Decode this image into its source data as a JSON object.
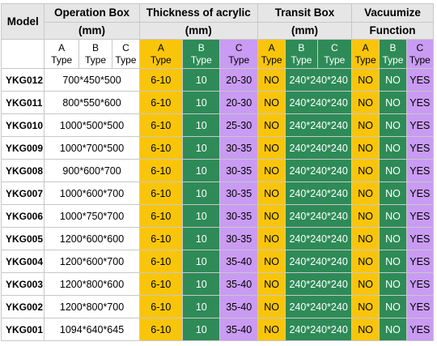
{
  "header": {
    "model": "Model",
    "operation_box": "Operation Box",
    "thickness": "Thickness of acrylic",
    "transit_box": "Transit Box",
    "vacuumize": "Vacuumize",
    "mm": "(mm)",
    "function": "Function",
    "sub": {
      "a": "A",
      "b": "B",
      "c": "C",
      "type": "Type"
    }
  },
  "rows": [
    {
      "model": "YKG012",
      "op_box": "700*450*500",
      "a": "6-10",
      "b": "10",
      "c": "20-30",
      "transit_a": "NO",
      "transit_bc": "240*240*240",
      "vac_a": "NO",
      "vac_b": "NO",
      "vac_c": "YES"
    },
    {
      "model": "YKG011",
      "op_box": "800*550*600",
      "a": "6-10",
      "b": "10",
      "c": "20-30",
      "transit_a": "NO",
      "transit_bc": "240*240*240",
      "vac_a": "NO",
      "vac_b": "NO",
      "vac_c": "YES"
    },
    {
      "model": "YKG010",
      "op_box": "1000*500*500",
      "a": "6-10",
      "b": "10",
      "c": "25-30",
      "transit_a": "NO",
      "transit_bc": "240*240*240",
      "vac_a": "NO",
      "vac_b": "NO",
      "vac_c": "YES"
    },
    {
      "model": "YKG009",
      "op_box": "1000*700*500",
      "a": "6-10",
      "b": "10",
      "c": "30-35",
      "transit_a": "NO",
      "transit_bc": "240*240*240",
      "vac_a": "NO",
      "vac_b": "NO",
      "vac_c": "YES"
    },
    {
      "model": "YKG008",
      "op_box": "900*600*700",
      "a": "6-10",
      "b": "10",
      "c": "30-35",
      "transit_a": "NO",
      "transit_bc": "240*240*240",
      "vac_a": "NO",
      "vac_b": "NO",
      "vac_c": "YES"
    },
    {
      "model": "YKG007",
      "op_box": "1000*600*700",
      "a": "6-10",
      "b": "10",
      "c": "30-35",
      "transit_a": "NO",
      "transit_bc": "240*240*240",
      "vac_a": "NO",
      "vac_b": "NO",
      "vac_c": "YES"
    },
    {
      "model": "YKG006",
      "op_box": "1000*750*700",
      "a": "6-10",
      "b": "10",
      "c": "30-35",
      "transit_a": "NO",
      "transit_bc": "240*240*240",
      "vac_a": "NO",
      "vac_b": "NO",
      "vac_c": "YES"
    },
    {
      "model": "YKG005",
      "op_box": "1200*600*600",
      "a": "6-10",
      "b": "10",
      "c": "30-35",
      "transit_a": "NO",
      "transit_bc": "240*240*240",
      "vac_a": "NO",
      "vac_b": "NO",
      "vac_c": "YES"
    },
    {
      "model": "YKG004",
      "op_box": "1200*600*700",
      "a": "6-10",
      "b": "10",
      "c": "35-40",
      "transit_a": "NO",
      "transit_bc": "240*240*240",
      "vac_a": "NO",
      "vac_b": "NO",
      "vac_c": "YES"
    },
    {
      "model": "YKG003",
      "op_box": "1200*800*600",
      "a": "6-10",
      "b": "10",
      "c": "35-40",
      "transit_a": "NO",
      "transit_bc": "240*240*240",
      "vac_a": "NO",
      "vac_b": "NO",
      "vac_c": "YES"
    },
    {
      "model": "YKG002",
      "op_box": "1200*800*700",
      "a": "6-10",
      "b": "10",
      "c": "35-40",
      "transit_a": "NO",
      "transit_bc": "240*240*240",
      "vac_a": "NO",
      "vac_b": "NO",
      "vac_c": "YES"
    },
    {
      "model": "YKG001",
      "op_box": "1094*640*645",
      "a": "6-10",
      "b": "10",
      "c": "35-40",
      "transit_a": "NO",
      "transit_bc": "240*240*240",
      "vac_a": "NO",
      "vac_b": "NO",
      "vac_c": "YES"
    }
  ],
  "colors": {
    "type_a": "#f9c50a",
    "type_b": "#2e8b57",
    "type_c": "#c99bf3",
    "header_bg": "#e6e6e6",
    "border": "#c8c8c8"
  }
}
